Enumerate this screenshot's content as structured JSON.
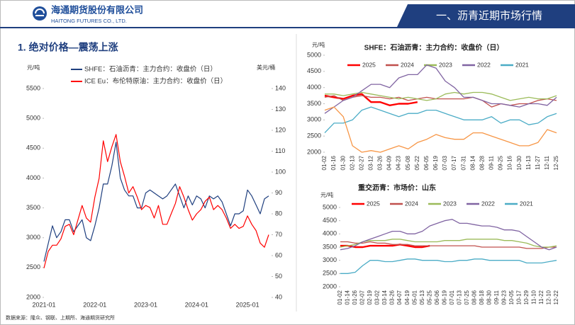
{
  "header": {
    "company": "海通期货股份有限公司",
    "company_en": "HAITONG FUTURES CO., LTD.",
    "section": "一、沥青近期市场行情"
  },
  "section_title": "1. 绝对价格—震荡上涨",
  "source": "数据来源：隆众、钢联、上期所、海通期货研究所",
  "chart_data": [
    {
      "type": "line",
      "y_label": "元/吨",
      "y2_label": "美元/桶",
      "x": [
        "2021-01",
        "2021-02",
        "2021-03",
        "2021-04",
        "2021-05",
        "2021-06",
        "2021-07",
        "2021-08",
        "2021-09",
        "2021-10",
        "2021-11",
        "2021-12",
        "2022-01",
        "2022-02",
        "2022-03",
        "2022-04",
        "2022-05",
        "2022-06",
        "2022-07",
        "2022-08",
        "2022-09",
        "2022-10",
        "2022-11",
        "2022-12",
        "2023-01",
        "2023-02",
        "2023-03",
        "2023-04",
        "2023-05",
        "2023-06",
        "2023-07",
        "2023-08",
        "2023-09",
        "2023-10",
        "2023-11",
        "2023-12",
        "2024-01",
        "2024-02",
        "2024-03",
        "2024-04",
        "2024-05",
        "2024-06",
        "2024-07",
        "2024-08",
        "2024-09",
        "2024-10",
        "2024-11",
        "2024-12",
        "2025-01",
        "2025-02",
        "2025-03",
        "2025-04",
        "2025-05",
        "2025-06"
      ],
      "xticks": [
        "2021-01",
        "2022-01",
        "2023-01",
        "2024-01",
        "2025-01"
      ],
      "ylim": [
        2000,
        5500
      ],
      "yticks": [
        2000,
        2500,
        3000,
        3500,
        4000,
        4500,
        5000,
        5500
      ],
      "y2lim": [
        40,
        140
      ],
      "y2ticks": [
        40,
        50,
        60,
        70,
        80,
        90,
        100,
        110,
        120,
        130,
        140
      ],
      "series": [
        {
          "name": "SHFE：石油沥青：主力合约：收盘价（日）",
          "color": "#1f3f7f",
          "values": [
            2600,
            2900,
            3200,
            3000,
            3100,
            3300,
            3300,
            3100,
            3200,
            3300,
            3000,
            2950,
            3200,
            3500,
            3900,
            3900,
            4200,
            4600,
            4000,
            3800,
            3700,
            3700,
            3500,
            3500,
            3750,
            3800,
            3750,
            3700,
            3650,
            3700,
            3800,
            3900,
            3700,
            3500,
            3700,
            3550,
            3700,
            3650,
            3500,
            3700,
            3650,
            3700,
            3600,
            3400,
            3200,
            3400,
            3400,
            3450,
            3800,
            3700,
            3550,
            3400,
            3650,
            3700
          ]
        },
        {
          "name": "ICE Eu：布伦特原油：主力合约：收盘价（日）",
          "color": "#ff0000",
          "axis": "y2",
          "values": [
            54,
            62,
            65,
            65,
            68,
            74,
            75,
            70,
            77,
            84,
            78,
            76,
            88,
            97,
            115,
            105,
            112,
            118,
            105,
            98,
            90,
            93,
            88,
            82,
            84,
            83,
            78,
            84,
            75,
            75,
            80,
            85,
            93,
            88,
            82,
            77,
            80,
            82,
            86,
            88,
            82,
            84,
            82,
            78,
            73,
            75,
            73,
            74,
            79,
            75,
            72,
            66,
            64,
            70
          ]
        }
      ]
    },
    {
      "type": "line",
      "title": "SHFE：石油沥青：主力合约：收盘价（日）",
      "y_label": "元/吨",
      "categories": [
        "01-02",
        "01-16",
        "01-30",
        "02-13",
        "02-27",
        "03-12",
        "03-26",
        "04-09",
        "04-23",
        "05-08",
        "05-22",
        "06-05",
        "06-19",
        "07-03",
        "07-17",
        "07-31",
        "08-14",
        "08-28",
        "09-11",
        "09-25",
        "10-16",
        "10-30",
        "11-13",
        "11-27",
        "12-11",
        "12-25"
      ],
      "ylim": [
        2000,
        5000
      ],
      "yticks": [
        2000,
        2500,
        3000,
        3500,
        4000,
        4500,
        5000
      ],
      "series": [
        {
          "name": "2025",
          "color": "#ff0000",
          "values": [
            3750,
            3700,
            3650,
            3750,
            3800,
            3550,
            3550,
            3450,
            3500,
            3500,
            3550,
            null,
            null,
            null,
            null,
            null,
            null,
            null,
            null,
            null,
            null,
            null,
            null,
            null,
            null,
            null
          ]
        },
        {
          "name": "2024",
          "color": "#c0504d",
          "values": [
            3700,
            3750,
            3600,
            3700,
            3750,
            3700,
            3700,
            3650,
            3700,
            3600,
            3650,
            3700,
            3650,
            3650,
            3650,
            3650,
            3700,
            3600,
            3400,
            3500,
            3450,
            3500,
            3500,
            3600,
            3650,
            3600
          ]
        },
        {
          "name": "2023",
          "color": "#9bbb59",
          "values": [
            3800,
            3800,
            3750,
            3800,
            3850,
            3800,
            3750,
            3700,
            3650,
            3700,
            3650,
            3600,
            3650,
            3800,
            3850,
            3800,
            3850,
            3850,
            3800,
            3700,
            3600,
            3650,
            3700,
            3650,
            3650,
            3750
          ]
        },
        {
          "name": "2022",
          "color": "#8064a2",
          "values": [
            3200,
            3400,
            3600,
            3700,
            3900,
            4100,
            4100,
            4000,
            4300,
            4400,
            4400,
            4700,
            4600,
            4200,
            4000,
            3700,
            3700,
            3600,
            3500,
            3500,
            3450,
            3400,
            3500,
            3500,
            3450,
            3700
          ]
        },
        {
          "name": "2021",
          "color": "#4bacc6",
          "values": [
            2600,
            2900,
            2900,
            3000,
            3300,
            3400,
            3300,
            3200,
            3100,
            3200,
            3200,
            3300,
            3300,
            3200,
            3100,
            3000,
            3000,
            3000,
            3100,
            2900,
            3000,
            3000,
            2850,
            2900,
            3100,
            3200
          ]
        },
        {
          "color": "#f79646",
          "values": [
            3300,
            3400,
            3100,
            2200,
            2000,
            2050,
            2000,
            2100,
            2200,
            2100,
            2300,
            2400,
            2550,
            2450,
            2400,
            2400,
            2600,
            2600,
            2500,
            2400,
            2300,
            2200,
            2200,
            2300,
            2700,
            2600
          ]
        }
      ]
    },
    {
      "type": "line",
      "title": "重交沥青：市场价：山东",
      "y_label": "元/吨",
      "categories": [
        "01-02",
        "01-14",
        "01-26",
        "02-07",
        "02-19",
        "03-02",
        "03-14",
        "03-26",
        "04-07",
        "04-19",
        "05-01",
        "05-13",
        "05-25",
        "06-06",
        "06-19",
        "07-01",
        "07-13",
        "07-25",
        "08-06",
        "08-18",
        "08-30",
        "09-11",
        "09-23",
        "10-05",
        "10-17",
        "10-29",
        "11-10",
        "11-22",
        "12-10",
        "12-22"
      ],
      "ylim": [
        2000,
        5000
      ],
      "yticks": [
        2000,
        2500,
        3000,
        3500,
        4000,
        4500,
        5000
      ],
      "series": [
        {
          "name": "2025",
          "color": "#ff0000",
          "values": [
            3550,
            3550,
            3500,
            3500,
            3550,
            3550,
            3550,
            3550,
            3600,
            3550,
            3500,
            3500,
            3550,
            null,
            null,
            null,
            null,
            null,
            null,
            null,
            null,
            null,
            null,
            null,
            null,
            null,
            null,
            null,
            null,
            null
          ]
        },
        {
          "name": "2024",
          "color": "#c0504d",
          "values": [
            3700,
            3700,
            3650,
            3650,
            3700,
            3650,
            3650,
            3600,
            3600,
            3600,
            3550,
            3550,
            3550,
            3550,
            3550,
            3550,
            3550,
            3550,
            3550,
            3500,
            3500,
            3500,
            3500,
            3500,
            3500,
            3450,
            3450,
            3450,
            3500,
            3500
          ]
        },
        {
          "name": "2023",
          "color": "#9bbb59",
          "values": [
            3500,
            3550,
            3600,
            3700,
            3750,
            3750,
            3750,
            3800,
            3800,
            3750,
            3700,
            3700,
            3700,
            3700,
            3750,
            3750,
            3750,
            3800,
            3800,
            3800,
            3800,
            3800,
            3750,
            3750,
            3700,
            3650,
            3550,
            3500,
            3500,
            3550
          ]
        },
        {
          "name": "2022",
          "color": "#8064a2",
          "values": [
            3400,
            3450,
            3550,
            3700,
            3800,
            3900,
            4000,
            4100,
            4100,
            4000,
            4000,
            4100,
            4300,
            4400,
            4500,
            4550,
            4400,
            4400,
            4350,
            4300,
            4300,
            4250,
            4150,
            4150,
            4100,
            3900,
            3700,
            3500,
            3400,
            3500
          ]
        },
        {
          "name": "2021",
          "color": "#4bacc6",
          "values": [
            2500,
            2500,
            2550,
            2800,
            3000,
            3000,
            2950,
            2950,
            3000,
            3050,
            3050,
            3000,
            3000,
            3000,
            2950,
            2950,
            3000,
            3000,
            3050,
            3050,
            3000,
            3000,
            3000,
            3000,
            3000,
            2900,
            2900,
            2900,
            2950,
            3000
          ]
        }
      ]
    }
  ]
}
